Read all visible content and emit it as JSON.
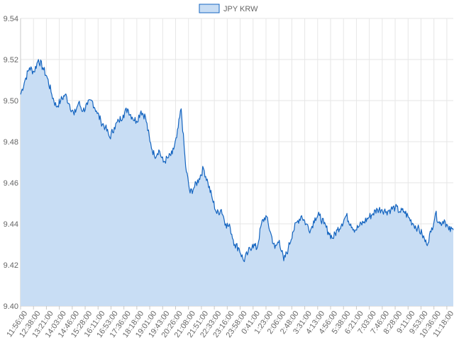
{
  "chart_data": {
    "type": "area",
    "legend": {
      "position": "top",
      "label": "JPY KRW"
    },
    "grid": true,
    "ylim": [
      9.4,
      9.54
    ],
    "yticks": [
      "9.54",
      "9.52",
      "9.50",
      "9.48",
      "9.46",
      "9.44",
      "9.42",
      "9.40"
    ],
    "xticks": [
      "11:56:00",
      "12:38:00",
      "13:21:00",
      "14:03:00",
      "14:46:00",
      "15:28:00",
      "16:11:00",
      "16:53:00",
      "17:36:00",
      "18:18:00",
      "19:01:00",
      "19:43:00",
      "20:26:00",
      "21:08:00",
      "21:51:00",
      "22:33:00",
      "23:16:00",
      "23:58:00",
      "0:41:00",
      "1:23:00",
      "2:06:00",
      "2:48:00",
      "3:31:00",
      "4:13:00",
      "4:56:00",
      "5:38:00",
      "6:21:00",
      "7:03:00",
      "7:46:00",
      "8:28:00",
      "9:11:00",
      "9:53:00",
      "10:36:00",
      "11:18:00"
    ],
    "series": [
      {
        "name": "JPY KRW",
        "color": "#1565c0",
        "fill": "#c8ddf4",
        "values": [
          9.503,
          9.51,
          9.516,
          9.514,
          9.52,
          9.516,
          9.511,
          9.503,
          9.497,
          9.5,
          9.503,
          9.498,
          9.493,
          9.499,
          9.495,
          9.498,
          9.5,
          9.495,
          9.49,
          9.487,
          9.482,
          9.487,
          9.49,
          9.493,
          9.496,
          9.492,
          9.49,
          9.495,
          9.492,
          9.48,
          9.473,
          9.476,
          9.47,
          9.472,
          9.474,
          9.482,
          9.496,
          9.468,
          9.455,
          9.458,
          9.462,
          9.467,
          9.46,
          9.452,
          9.445,
          9.447,
          9.44,
          9.438,
          9.43,
          9.428,
          9.422,
          9.426,
          9.43,
          9.428,
          9.44,
          9.444,
          9.436,
          9.428,
          9.432,
          9.422,
          9.428,
          9.436,
          9.441,
          9.444,
          9.44,
          9.437,
          9.443,
          9.444,
          9.44,
          9.436,
          9.433,
          9.437,
          9.44,
          9.444,
          9.44,
          9.437,
          9.439,
          9.441,
          9.443,
          9.445,
          9.447,
          9.447,
          9.446,
          9.447,
          9.448,
          9.446,
          9.446,
          9.443,
          9.44,
          9.438,
          9.435,
          9.43,
          9.436,
          9.445,
          9.44,
          9.442,
          9.437,
          9.437
        ]
      }
    ]
  }
}
